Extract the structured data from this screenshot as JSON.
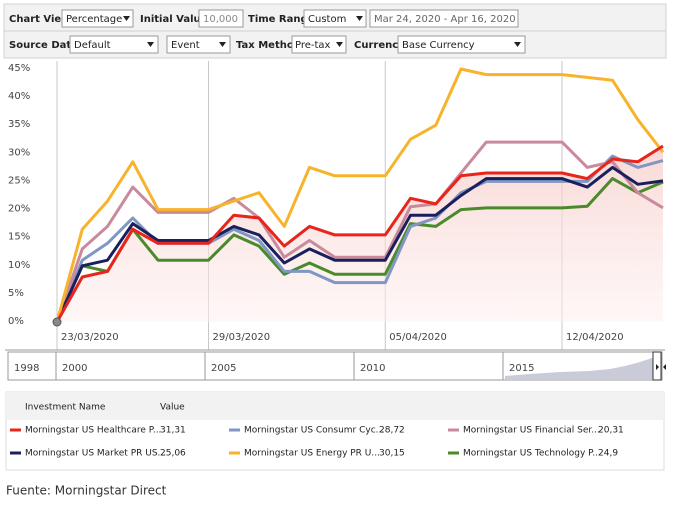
{
  "toolbar": {
    "chart_view_label": "Chart View",
    "chart_view": "Percentage",
    "initial_value_label": "Initial Value",
    "initial_value": "10,000",
    "time_range_label": "Time Range",
    "time_range": "Custom",
    "date_range": "Mar 24, 2020 - Apr 16, 2020",
    "source_data_label": "Source Data",
    "source_data": "Default",
    "event": "Event",
    "tax_method_label": "Tax Method",
    "tax_method": "Pre-tax",
    "currency_label": "Currency",
    "currency": "Base Currency"
  },
  "chart_data": {
    "type": "line",
    "categories": [
      "23/03/2020",
      null,
      null,
      null,
      null,
      null,
      "29/03/2020",
      null,
      null,
      null,
      null,
      null,
      null,
      "05/04/2020",
      null,
      null,
      null,
      null,
      null,
      null,
      "12/04/2020",
      null,
      null,
      null,
      null
    ],
    "ylim": [
      0,
      45
    ],
    "yticks": [
      {
        "value": 0,
        "label": "0%"
      },
      {
        "value": 5,
        "label": "5%"
      },
      {
        "value": 10,
        "label": "10%"
      },
      {
        "value": 15,
        "label": "15%"
      },
      {
        "value": 20,
        "label": "20%"
      },
      {
        "value": 25,
        "label": "25%"
      },
      {
        "value": 30,
        "label": "30%"
      },
      {
        "value": 35,
        "label": "35%"
      },
      {
        "value": 40,
        "label": "40%"
      },
      {
        "value": 45,
        "label": "45%"
      }
    ],
    "series": [
      {
        "name": "Morningstar US Healthcare P...",
        "color": "#e8251a",
        "values": [
          0,
          8,
          9,
          16.5,
          14,
          14,
          14,
          19,
          18.5,
          13.5,
          17,
          15.5,
          15.5,
          15.5,
          22,
          21,
          26,
          26.5,
          26.5,
          26.5,
          26.5,
          25.5,
          29,
          28.5,
          31.3
        ]
      },
      {
        "name": "Morningstar US Consumr Cyc...",
        "color": "#7f97c2",
        "values": [
          0,
          11,
          14,
          18.5,
          14,
          14,
          14,
          16.5,
          14.5,
          9,
          9,
          7,
          7,
          7,
          17,
          18.5,
          23,
          25,
          25,
          25,
          25,
          25,
          29.5,
          27.5,
          28.7
        ]
      },
      {
        "name": "Morningstar US Financial Ser...",
        "color": "#c98a9c",
        "values": [
          0,
          13,
          17,
          24,
          19.5,
          19.5,
          19.5,
          22,
          18.5,
          11.5,
          14.5,
          11.5,
          11.5,
          11.5,
          20.5,
          21,
          26.5,
          32,
          32,
          32,
          32,
          27.5,
          28.5,
          23,
          20.3
        ]
      },
      {
        "name": "Morningstar US Market PR US...",
        "color": "#1a1f5e",
        "values": [
          0,
          10,
          11,
          17.5,
          14.5,
          14.5,
          14.5,
          17,
          15.5,
          10.5,
          13,
          11,
          11,
          11,
          19,
          19,
          22.5,
          25.5,
          25.5,
          25.5,
          25.5,
          24,
          27.5,
          24.5,
          25.1
        ]
      },
      {
        "name": "Morningstar US Energy PR U...",
        "color": "#f7b32b",
        "values": [
          0,
          16.5,
          21.5,
          28.5,
          20,
          20,
          20,
          21.5,
          23,
          17,
          27.5,
          26,
          26,
          26,
          32.5,
          35,
          45,
          44,
          44,
          44,
          44,
          43.5,
          43,
          36,
          30.2
        ]
      },
      {
        "name": "Morningstar US Technology P...",
        "color": "#4a8a2a",
        "values": [
          0,
          10,
          9,
          16.5,
          11,
          11,
          11,
          15.5,
          13.5,
          8.5,
          10.5,
          8.5,
          8.5,
          8.5,
          17.5,
          17,
          20,
          20.3,
          20.3,
          20.3,
          20.3,
          20.6,
          25.5,
          23,
          24.9
        ]
      }
    ],
    "legend_header": [
      "Investment Name",
      "Value"
    ],
    "legend_values": [
      "31,31",
      "28,72",
      "20,31",
      "25,06",
      "30,15",
      "24,9"
    ]
  },
  "navigator": {
    "labels": [
      "1998",
      "2000",
      "2005",
      "2010",
      "2015"
    ]
  },
  "source": "Fuente: Morningstar Direct"
}
